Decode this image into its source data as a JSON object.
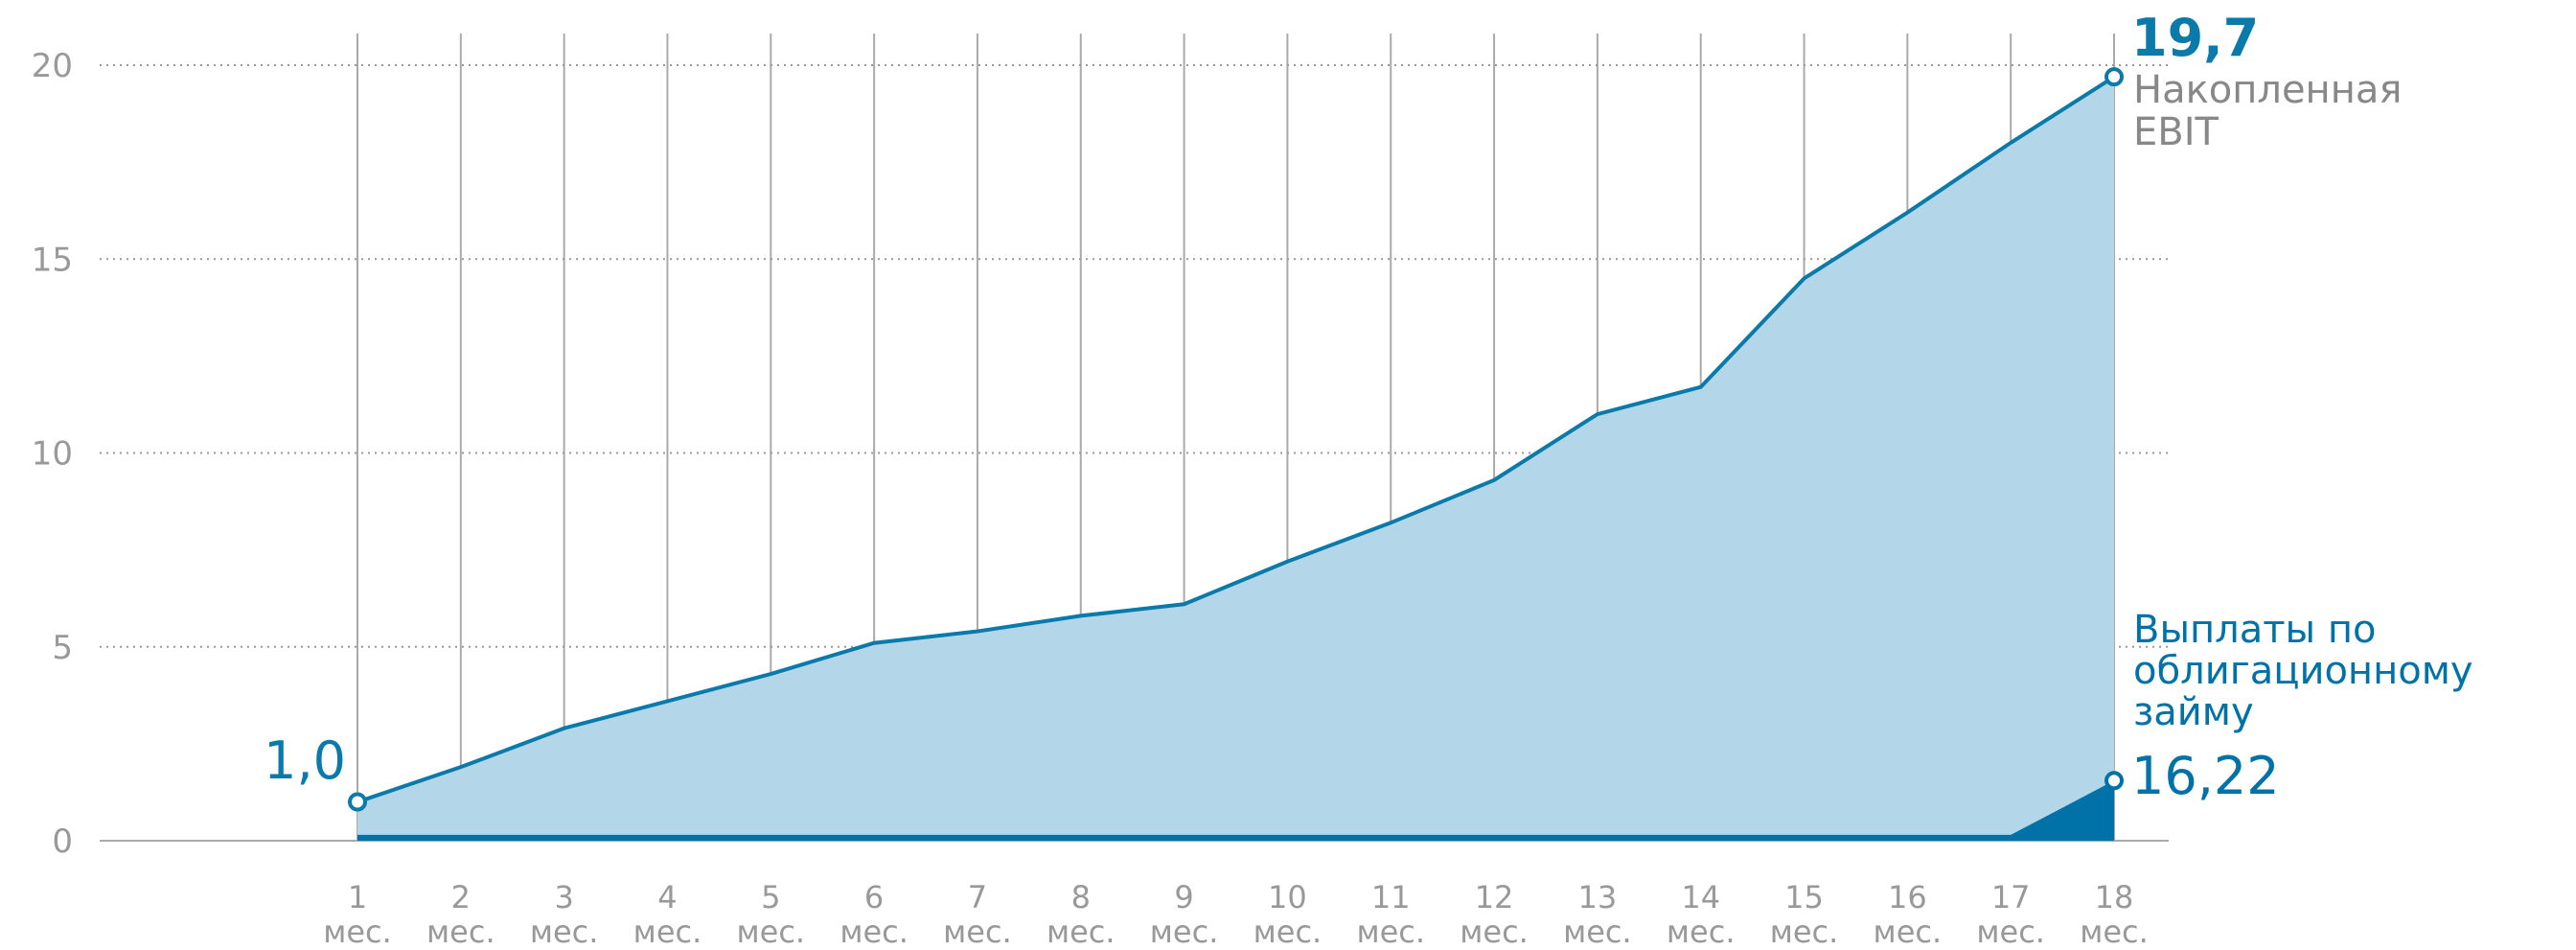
{
  "chart_data": {
    "type": "area",
    "categories": [
      "1 мес.",
      "2 мес.",
      "3 мес.",
      "4 мес.",
      "5 мес.",
      "6 мес.",
      "7 мес.",
      "8 мес.",
      "9 мес.",
      "10 мес.",
      "11 мес.",
      "12 мес.",
      "13 мес.",
      "14 мес.",
      "15 мес.",
      "16 мес.",
      "17 мес.",
      "18 мес."
    ],
    "series": [
      {
        "name": "Накопленная EBIT",
        "color": "#0a7aab",
        "fill": "#b3d7e8",
        "values": [
          1.0,
          1.9,
          2.9,
          3.6,
          4.3,
          5.1,
          5.4,
          5.8,
          6.1,
          7.2,
          8.2,
          9.3,
          11.0,
          11.7,
          14.5,
          16.2,
          18.0,
          19.7
        ],
        "value_labels": [
          "1,0",
          null,
          null,
          null,
          null,
          null,
          null,
          null,
          null,
          null,
          null,
          null,
          null,
          null,
          null,
          null,
          null,
          "19,7"
        ]
      },
      {
        "name": "Выплаты по облигационному займу",
        "color": "#0072a8",
        "fill": "#0072a8",
        "values": [
          0.15,
          0.15,
          0.15,
          0.15,
          0.15,
          0.15,
          0.15,
          0.15,
          0.15,
          0.15,
          0.15,
          0.15,
          0.15,
          0.15,
          0.15,
          0.15,
          0.15,
          1.55
        ]
      }
    ],
    "annotation": "16,22",
    "ylim": [
      0,
      20
    ],
    "yticks": [
      0,
      5,
      10,
      15,
      20
    ],
    "grid": true
  }
}
